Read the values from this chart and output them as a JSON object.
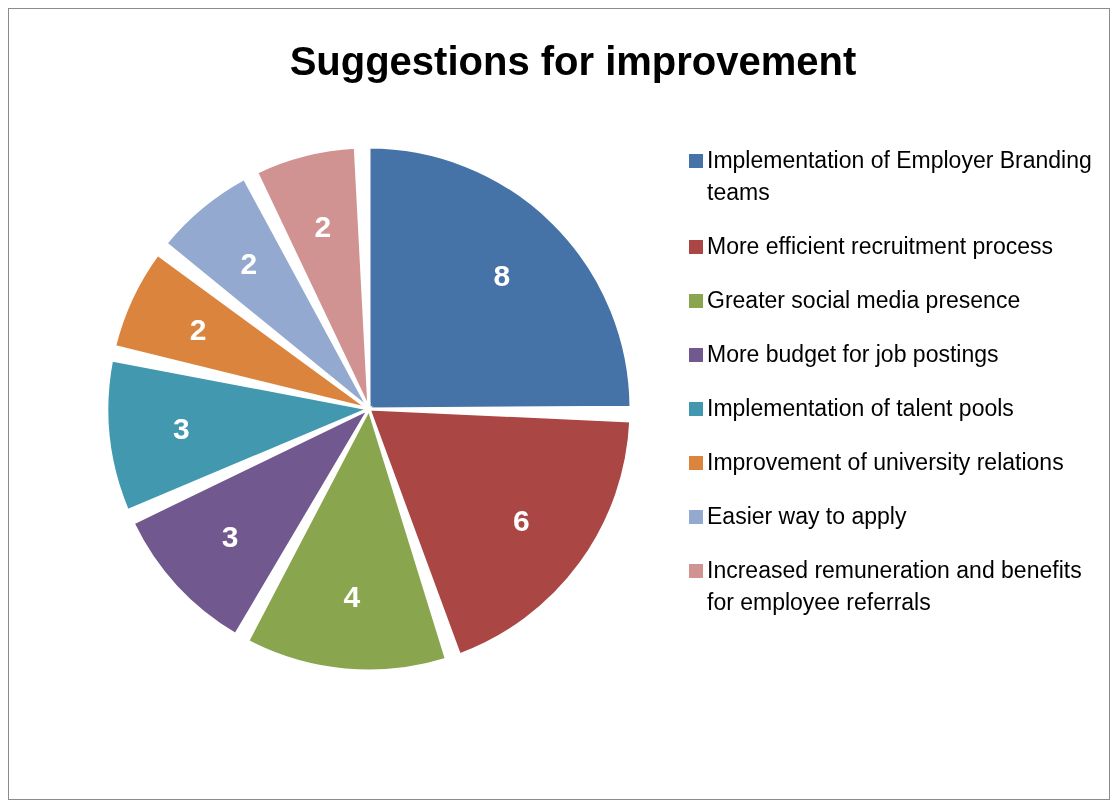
{
  "chart_data": {
    "type": "pie",
    "title": "Suggestions for improvement",
    "categories": [
      "Implementation of Employer Branding teams",
      "More efficient recruitment process",
      "Greater social media presence",
      "More budget for job postings",
      "Implementation of talent pools",
      "Improvement of university relations",
      "Easier way to apply",
      "Increased remuneration and benefits for employee referrals"
    ],
    "values": [
      8,
      6,
      4,
      3,
      3,
      2,
      2,
      2
    ],
    "colors": [
      "#4572a7",
      "#aa4643",
      "#89a54e",
      "#71588f",
      "#4198af",
      "#db843d",
      "#93a9cf",
      "#d19392"
    ],
    "data_labels": true,
    "legend": "right"
  }
}
